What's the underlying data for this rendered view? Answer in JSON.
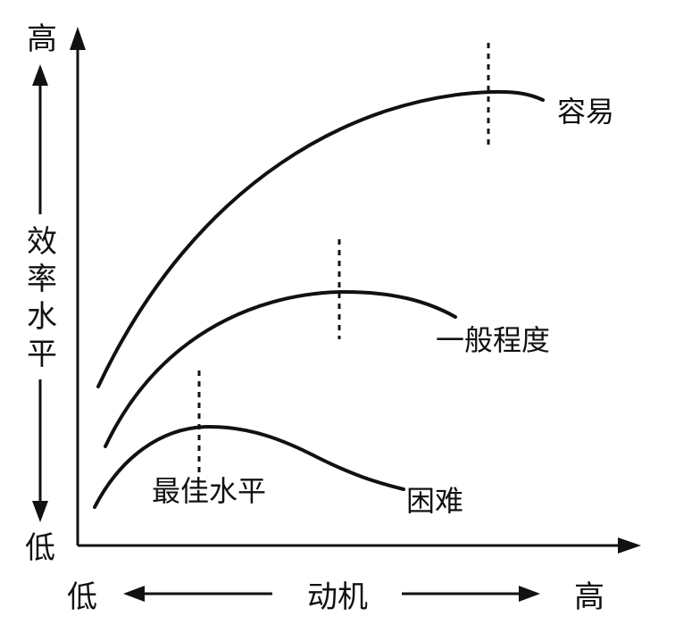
{
  "chart_data": {
    "type": "line",
    "title": "",
    "xlabel": "动机",
    "ylabel": "效率水平",
    "x_axis_ends": {
      "low": "低",
      "high": "高"
    },
    "y_axis_ends": {
      "low": "低",
      "high": "高"
    },
    "curves": [
      {
        "name": "容易",
        "optimum_label": ""
      },
      {
        "name": "一般程度",
        "optimum_label": ""
      },
      {
        "name": "困难",
        "optimum_label": "最佳水平"
      }
    ]
  }
}
